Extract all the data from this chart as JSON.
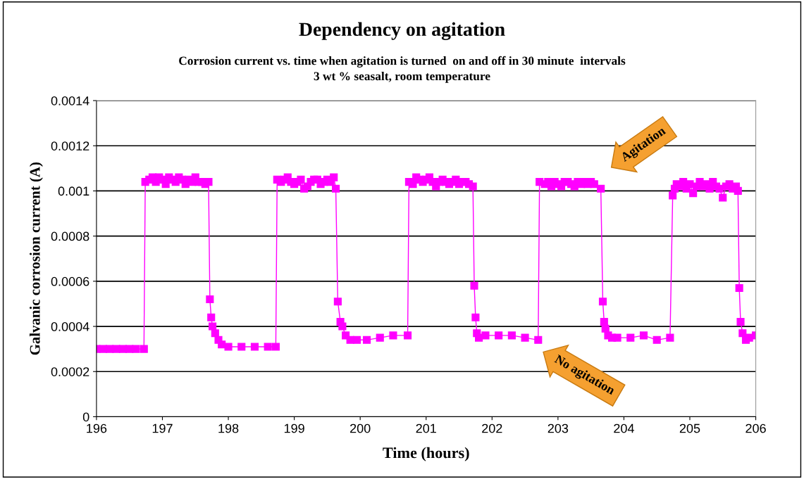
{
  "chart_data": {
    "type": "line",
    "title": "Dependency on agitation",
    "subtitle": "Corrosion current vs. time when agitation is turned  on and off in 30 minute  intervals\n3 wt % seasalt, room temperature",
    "xlabel": "Time (hours)",
    "ylabel": "Galvanic corrosion current (A)",
    "series": [
      {
        "color": "#ff00ff",
        "x": [
          196.0,
          196.1,
          196.2,
          196.3,
          196.4,
          196.5,
          196.6,
          196.72,
          196.74,
          196.8,
          196.85,
          196.9,
          196.95,
          197.0,
          197.05,
          197.1,
          197.15,
          197.2,
          197.25,
          197.3,
          197.35,
          197.4,
          197.45,
          197.5,
          197.55,
          197.6,
          197.65,
          197.7,
          197.72,
          197.74,
          197.76,
          197.8,
          197.85,
          197.9,
          198.0,
          198.2,
          198.4,
          198.6,
          198.72,
          198.74,
          198.8,
          198.85,
          198.9,
          198.95,
          199.0,
          199.05,
          199.1,
          199.15,
          199.2,
          199.25,
          199.3,
          199.35,
          199.4,
          199.45,
          199.5,
          199.55,
          199.6,
          199.63,
          199.66,
          199.7,
          199.73,
          199.78,
          199.85,
          199.95,
          200.1,
          200.3,
          200.5,
          200.72,
          200.74,
          200.8,
          200.85,
          200.9,
          200.95,
          201.0,
          201.05,
          201.1,
          201.15,
          201.2,
          201.25,
          201.3,
          201.35,
          201.4,
          201.45,
          201.5,
          201.55,
          201.6,
          201.65,
          201.71,
          201.73,
          201.75,
          201.77,
          201.8,
          201.9,
          202.1,
          202.3,
          202.5,
          202.7,
          202.72,
          202.8,
          202.85,
          202.9,
          202.95,
          203.0,
          203.05,
          203.1,
          203.15,
          203.2,
          203.25,
          203.3,
          203.35,
          203.4,
          203.45,
          203.5,
          203.55,
          203.65,
          203.68,
          203.7,
          203.72,
          203.76,
          203.82,
          203.9,
          204.1,
          204.3,
          204.5,
          204.7,
          204.74,
          204.77,
          204.8,
          204.85,
          204.9,
          204.95,
          205.0,
          205.05,
          205.1,
          205.15,
          205.2,
          205.25,
          205.3,
          205.35,
          205.4,
          205.45,
          205.5,
          205.55,
          205.6,
          205.65,
          205.7,
          205.73,
          205.75,
          205.77,
          205.8,
          205.85,
          205.9,
          206.0
        ],
        "values": [
          0.0003,
          0.0003,
          0.0003,
          0.0003,
          0.0003,
          0.0003,
          0.0003,
          0.0003,
          0.00104,
          0.00105,
          0.00106,
          0.00104,
          0.00106,
          0.00105,
          0.00103,
          0.00106,
          0.00105,
          0.00104,
          0.00106,
          0.00105,
          0.00103,
          0.00105,
          0.00104,
          0.00106,
          0.00104,
          0.00104,
          0.00103,
          0.00104,
          0.00052,
          0.00044,
          0.0004,
          0.00037,
          0.00034,
          0.00032,
          0.00031,
          0.00031,
          0.00031,
          0.00031,
          0.00031,
          0.00105,
          0.00104,
          0.00105,
          0.00106,
          0.00104,
          0.00103,
          0.00104,
          0.00105,
          0.00101,
          0.00102,
          0.00104,
          0.00105,
          0.00105,
          0.00103,
          0.00104,
          0.00105,
          0.00104,
          0.00106,
          0.00101,
          0.00051,
          0.00042,
          0.0004,
          0.00036,
          0.00034,
          0.00034,
          0.00034,
          0.00035,
          0.00036,
          0.00036,
          0.00104,
          0.00103,
          0.00106,
          0.00105,
          0.00104,
          0.00105,
          0.00106,
          0.00104,
          0.00102,
          0.00104,
          0.00105,
          0.00104,
          0.00103,
          0.00104,
          0.00105,
          0.00103,
          0.00104,
          0.00104,
          0.00103,
          0.00102,
          0.00058,
          0.00044,
          0.00037,
          0.00035,
          0.00036,
          0.00036,
          0.00036,
          0.00035,
          0.00034,
          0.00104,
          0.00103,
          0.00104,
          0.00102,
          0.00104,
          0.00103,
          0.00102,
          0.00104,
          0.00104,
          0.00103,
          0.00102,
          0.00104,
          0.00103,
          0.00104,
          0.00103,
          0.00104,
          0.00103,
          0.00101,
          0.00051,
          0.00042,
          0.00039,
          0.00036,
          0.00035,
          0.00035,
          0.00035,
          0.00036,
          0.00034,
          0.00035,
          0.00098,
          0.00101,
          0.00103,
          0.00102,
          0.00104,
          0.00101,
          0.00103,
          0.00099,
          0.00102,
          0.00104,
          0.00102,
          0.00103,
          0.00101,
          0.00104,
          0.00102,
          0.00101,
          0.00097,
          0.00102,
          0.00103,
          0.00101,
          0.00102,
          0.001,
          0.00057,
          0.00042,
          0.00037,
          0.00034,
          0.00035,
          0.00036
        ]
      }
    ],
    "xlim": [
      196,
      206
    ],
    "xticks": [
      196,
      197,
      198,
      199,
      200,
      201,
      202,
      203,
      204,
      205,
      206
    ],
    "ylim": [
      0,
      0.0014
    ],
    "yticks": [
      {
        "value": 0,
        "label": "0"
      },
      {
        "value": 0.0002,
        "label": "0.0002"
      },
      {
        "value": 0.0004,
        "label": "0.0004"
      },
      {
        "value": 0.0006,
        "label": "0.0006"
      },
      {
        "value": 0.0008,
        "label": "0.0008"
      },
      {
        "value": 0.001,
        "label": "0.001"
      },
      {
        "value": 0.0012,
        "label": "0.0012"
      },
      {
        "value": 0.0014,
        "label": "0.0014"
      }
    ],
    "grid": "y",
    "marker": "square",
    "line_style": "solid",
    "legend": false,
    "annotations": [
      "Agitation",
      "No agitation"
    ]
  }
}
